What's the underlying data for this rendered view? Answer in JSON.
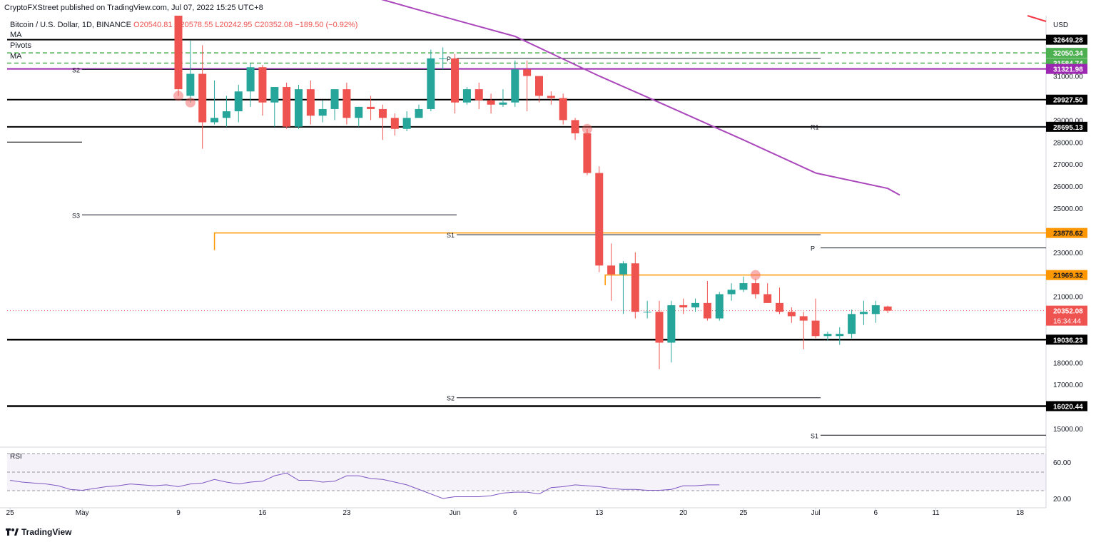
{
  "header": {
    "publisher_line": "CryptoFXStreet published on TradingView.com, Jul 07, 2022 15:25 UTC+8"
  },
  "symbol": {
    "title": "Bitcoin / U.S. Dollar, 1D, BINANCE",
    "open": "O20540.81",
    "high": "H20578.55",
    "low": "L20242.95",
    "close": "C20352.08",
    "change": "−189.50 (−0.92%)"
  },
  "indicators": [
    "MA",
    "Pivots",
    "MA"
  ],
  "rsi_label": "RSI",
  "currency": "USD",
  "branding": "TradingView",
  "colors": {
    "up": "#26a69a",
    "down": "#ef5350",
    "ma_purple": "#ab47bc",
    "ma_red": "#f23645",
    "orange": "#ff9800",
    "green_dash": "#4caf50",
    "rsi_line": "#7e57c2"
  },
  "chart_data": {
    "type": "candlestick",
    "y_axis_ticks": [
      15000,
      16000,
      17000,
      18000,
      19000,
      20000,
      21000,
      22000,
      23000,
      24000,
      25000,
      26000,
      27000,
      28000,
      29000,
      30000,
      31000
    ],
    "x_axis": {
      "labels": [
        {
          "label": "25",
          "i": -14
        },
        {
          "label": "May",
          "i": -8
        },
        {
          "label": "9",
          "i": 0
        },
        {
          "label": "16",
          "i": 7
        },
        {
          "label": "23",
          "i": 14
        },
        {
          "label": "Jun",
          "i": 23
        },
        {
          "label": "6",
          "i": 28
        },
        {
          "label": "13",
          "i": 35
        },
        {
          "label": "20",
          "i": 42
        },
        {
          "label": "25",
          "i": 47
        },
        {
          "label": "Jul",
          "i": 53
        },
        {
          "label": "6",
          "i": 58
        },
        {
          "label": "11",
          "i": 63
        },
        {
          "label": "18",
          "i": 70
        }
      ]
    },
    "candles": [
      [
        34000,
        34100,
        30100,
        30400
      ],
      [
        30100,
        32600,
        29800,
        31100
      ],
      [
        31100,
        32400,
        27700,
        28900
      ],
      [
        28900,
        30800,
        28800,
        29100
      ],
      [
        29100,
        30100,
        28700,
        29400
      ],
      [
        29400,
        30600,
        28900,
        30300
      ],
      [
        30300,
        31600,
        29600,
        31400
      ],
      [
        31400,
        31500,
        29200,
        29800
      ],
      [
        29800,
        30400,
        28700,
        30500
      ],
      [
        30500,
        30700,
        28600,
        28700
      ],
      [
        28700,
        30600,
        28600,
        30400
      ],
      [
        30400,
        30800,
        28800,
        29200
      ],
      [
        29200,
        29900,
        28900,
        29500
      ],
      [
        29500,
        30400,
        29000,
        30400
      ],
      [
        30400,
        30700,
        28800,
        29100
      ],
      [
        29100,
        29600,
        28700,
        29600
      ],
      [
        29600,
        30100,
        29000,
        29500
      ],
      [
        29500,
        29700,
        28100,
        29100
      ],
      [
        29100,
        29300,
        28300,
        28600
      ],
      [
        28600,
        29400,
        28500,
        29100
      ],
      [
        29100,
        29700,
        29100,
        29500
      ],
      [
        29500,
        32200,
        29400,
        31800
      ],
      [
        31800,
        32300,
        31300,
        31800
      ],
      [
        31800,
        32000,
        29300,
        29800
      ],
      [
        29800,
        30500,
        29700,
        30400
      ],
      [
        30400,
        30700,
        29500,
        29900
      ],
      [
        29900,
        30200,
        29300,
        29700
      ],
      [
        29700,
        30400,
        29600,
        29800
      ],
      [
        29800,
        31700,
        29600,
        31300
      ],
      [
        31300,
        31700,
        29400,
        31000
      ],
      [
        31000,
        31000,
        29800,
        30100
      ],
      [
        30100,
        30300,
        29700,
        30000
      ],
      [
        30000,
        30200,
        28800,
        29000
      ],
      [
        29000,
        29100,
        28100,
        28400
      ],
      [
        28400,
        28600,
        26500,
        26600
      ],
      [
        26600,
        26900,
        22100,
        22400
      ],
      [
        22400,
        23400,
        20800,
        22000
      ],
      [
        22000,
        22600,
        20200,
        22500
      ],
      [
        22500,
        23000,
        20000,
        20300
      ],
      [
        20300,
        20800,
        20000,
        20300
      ],
      [
        20300,
        20800,
        17700,
        18900
      ],
      [
        18900,
        20800,
        18000,
        20600
      ],
      [
        20600,
        20900,
        20200,
        20500
      ],
      [
        20500,
        20900,
        20300,
        20700
      ],
      [
        20700,
        21700,
        19900,
        20000
      ],
      [
        20000,
        21200,
        19900,
        21100
      ],
      [
        21100,
        21600,
        20800,
        21300
      ],
      [
        21300,
        21900,
        21200,
        21600
      ],
      [
        21600,
        21800,
        20900,
        21100
      ],
      [
        21100,
        21600,
        20700,
        20700
      ],
      [
        20700,
        21400,
        20200,
        20300
      ],
      [
        20300,
        20500,
        19800,
        20100
      ],
      [
        20100,
        20300,
        18600,
        19900
      ],
      [
        19900,
        20900,
        19100,
        19200
      ],
      [
        19200,
        19400,
        19000,
        19300
      ],
      [
        19200,
        19600,
        18800,
        19300
      ],
      [
        19300,
        20400,
        19100,
        20200
      ],
      [
        20200,
        20800,
        19700,
        20300
      ],
      [
        20200,
        20800,
        19800,
        20600
      ],
      [
        20540.81,
        20578.55,
        20242.95,
        20352.08
      ]
    ],
    "pivot_points": {
      "previous_period": {
        "P": 31800,
        "S1": 23800,
        "S2": 16400
      },
      "current_period": {
        "R1": 28700,
        "P": 23200,
        "S1": 14700
      },
      "older_S2": 31300,
      "older_S3": 24700
    },
    "horizontal_levels": [
      {
        "label": "32649.28",
        "value": 32649.28,
        "color": "#000000"
      },
      {
        "label": "32050.34",
        "value": 32050.34,
        "color": "#4caf50"
      },
      {
        "label": "31584.74",
        "value": 31584.74,
        "color": "#4caf50"
      },
      {
        "label": "31321.98",
        "value": 31321.98,
        "color": "#9c27b0"
      },
      {
        "label": "29927.50",
        "value": 29927.5,
        "color": "#000000"
      },
      {
        "label": "28695.13",
        "value": 28695.13,
        "color": "#000000"
      },
      {
        "label": "23878.62",
        "value": 23878.62,
        "color": "#ff9800"
      },
      {
        "label": "21969.32",
        "value": 21969.32,
        "color": "#ff9800"
      },
      {
        "label": "19036.23",
        "value": 19036.23,
        "color": "#000000"
      },
      {
        "label": "16020.44",
        "value": 16020.44,
        "color": "#000000"
      }
    ],
    "last_price": {
      "label": "20352.08",
      "value": 20352.08,
      "countdown": "16:34:44"
    },
    "ma_line": [
      [
        13.5,
        35000
      ],
      [
        20,
        34000
      ],
      [
        28,
        32800
      ],
      [
        35,
        31000
      ],
      [
        40,
        29800
      ],
      [
        47,
        28100
      ],
      [
        53,
        26600
      ],
      [
        59,
        25900
      ],
      [
        60,
        25600
      ]
    ],
    "rsi": {
      "ticks": [
        60,
        20
      ],
      "values": [
        40,
        38,
        37,
        36,
        34,
        30,
        29,
        31,
        33,
        34,
        36,
        35,
        34,
        35,
        33,
        36,
        37,
        41,
        38,
        36,
        38,
        39,
        45,
        48,
        40,
        40,
        38,
        39,
        45,
        45,
        42,
        41,
        38,
        35,
        30,
        25,
        20,
        22,
        22,
        22,
        23,
        26,
        27,
        27,
        25,
        32,
        33,
        35,
        34,
        33,
        31,
        30,
        30,
        29,
        29,
        30,
        34,
        34,
        35,
        35
      ]
    }
  }
}
